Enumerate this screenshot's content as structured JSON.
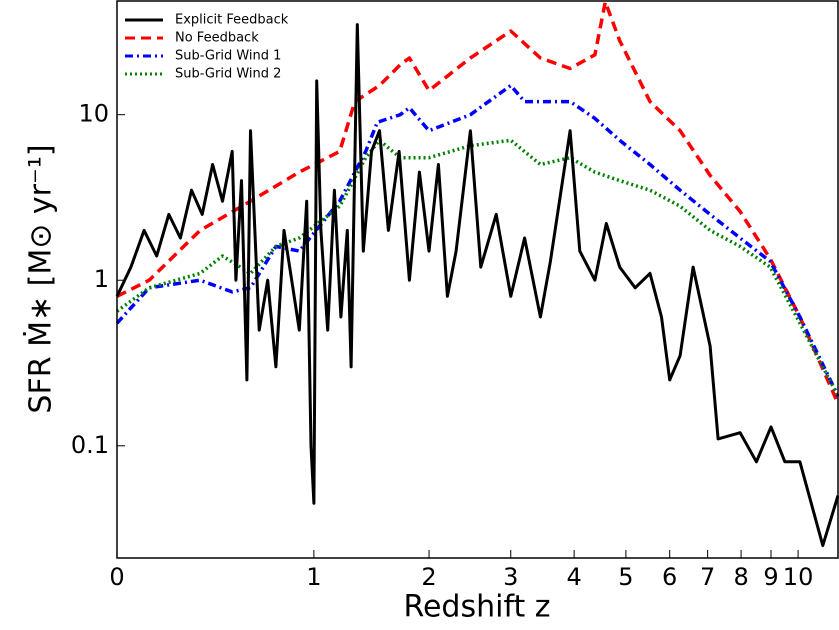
{
  "chart_data": {
    "type": "line",
    "xlabel": "Redshift z",
    "ylabel": "SFR  Ṁ∗ [M⊙ yr⁻¹]",
    "xscale": "log1p",
    "yscale": "log",
    "xlim": [
      0,
      11.66
    ],
    "ylim": [
      0.021,
      48.6
    ],
    "xticks": [
      0,
      1,
      2,
      3,
      4,
      5,
      6,
      7,
      8,
      9,
      10
    ],
    "yticks": [
      0.1,
      1,
      10
    ],
    "legend": "upper left",
    "series": [
      {
        "name": "Explicit Feedback",
        "color": "#000000",
        "linestyle": "solid",
        "x": [
          0,
          0.05,
          0.1,
          0.15,
          0.2,
          0.25,
          0.3,
          0.35,
          0.4,
          0.45,
          0.5,
          0.52,
          0.55,
          0.58,
          0.6,
          0.65,
          0.7,
          0.75,
          0.8,
          0.85,
          0.9,
          0.95,
          0.98,
          1.0,
          1.02,
          1.05,
          1.1,
          1.15,
          1.2,
          1.25,
          1.28,
          1.33,
          1.38,
          1.45,
          1.52,
          1.6,
          1.7,
          1.8,
          1.9,
          2.0,
          2.1,
          2.2,
          2.3,
          2.47,
          2.6,
          2.8,
          3.0,
          3.2,
          3.44,
          3.6,
          3.93,
          4.1,
          4.38,
          4.6,
          4.87,
          5.2,
          5.53,
          5.8,
          6.0,
          6.26,
          6.6,
          7.07,
          7.3,
          7.97,
          8.5,
          9.0,
          9.5,
          10.07,
          11.0,
          11.66
        ],
        "values": [
          0.8,
          1.2,
          2.0,
          1.4,
          2.5,
          1.8,
          3.5,
          2.5,
          5.0,
          3.0,
          6.0,
          1.0,
          4.0,
          0.25,
          8.0,
          0.5,
          1.0,
          0.3,
          2.0,
          1.0,
          0.5,
          3.0,
          0.1,
          0.045,
          16,
          2.0,
          0.5,
          3.5,
          0.6,
          2.0,
          0.3,
          35,
          1.5,
          6,
          8,
          2,
          6,
          1.0,
          4.5,
          1.5,
          5,
          0.8,
          1.5,
          8,
          1.2,
          2.5,
          0.8,
          1.8,
          0.6,
          1.3,
          8,
          1.5,
          1.0,
          2.2,
          1.2,
          0.9,
          1.1,
          0.6,
          0.25,
          0.35,
          1.2,
          0.4,
          0.11,
          0.12,
          0.08,
          0.13,
          0.08,
          0.08,
          0.025,
          0.05
        ]
      },
      {
        "name": "No Feedback",
        "color": "#ff0000",
        "linestyle": "dashed",
        "x": [
          0,
          0.12,
          0.34,
          0.6,
          0.9,
          1.19,
          1.31,
          1.52,
          1.71,
          1.8,
          2.0,
          2.47,
          3.0,
          3.44,
          3.93,
          4.38,
          4.58,
          4.87,
          5.53,
          6.26,
          7.07,
          7.97,
          8.97,
          10.07,
          11.66
        ],
        "values": [
          0.8,
          1.0,
          2.0,
          3.0,
          4.5,
          6.0,
          12,
          15,
          20,
          22,
          14,
          22,
          32,
          22,
          19,
          23,
          48,
          28,
          12,
          8,
          4.3,
          2.6,
          1.35,
          0.6,
          0.18
        ]
      },
      {
        "name": "Sub-Grid Wind 1",
        "color": "#0000ff",
        "linestyle": "dashdot",
        "x": [
          0,
          0.12,
          0.34,
          0.5,
          0.6,
          0.75,
          0.9,
          1.19,
          1.4,
          1.5,
          1.71,
          1.8,
          2.0,
          2.47,
          3.0,
          3.2,
          3.93,
          4.38,
          4.87,
          5.53,
          6.26,
          7.07,
          7.97,
          8.97,
          10.07,
          11.66
        ],
        "values": [
          0.55,
          0.9,
          1.0,
          0.85,
          0.9,
          1.6,
          1.5,
          3.0,
          6.0,
          9,
          10,
          11,
          8,
          10,
          15,
          12,
          12,
          9.5,
          7,
          5,
          3.5,
          2.5,
          1.8,
          1.3,
          0.6,
          0.2
        ]
      },
      {
        "name": "Sub-Grid Wind 2",
        "color": "#008000",
        "linestyle": "dotted",
        "x": [
          0,
          0.12,
          0.34,
          0.45,
          0.6,
          0.75,
          0.9,
          1.19,
          1.4,
          1.52,
          1.71,
          2.0,
          2.47,
          3.0,
          3.44,
          3.93,
          4.38,
          4.87,
          5.53,
          6.26,
          7.07,
          7.97,
          8.97,
          10.07,
          11.66
        ],
        "values": [
          0.65,
          0.9,
          1.1,
          1.4,
          1.1,
          1.6,
          1.8,
          2.8,
          5.5,
          7,
          5.5,
          5.5,
          6.5,
          7,
          5,
          5.5,
          4.5,
          4.0,
          3.5,
          2.8,
          2.0,
          1.6,
          1.2,
          0.55,
          0.2
        ]
      }
    ]
  }
}
